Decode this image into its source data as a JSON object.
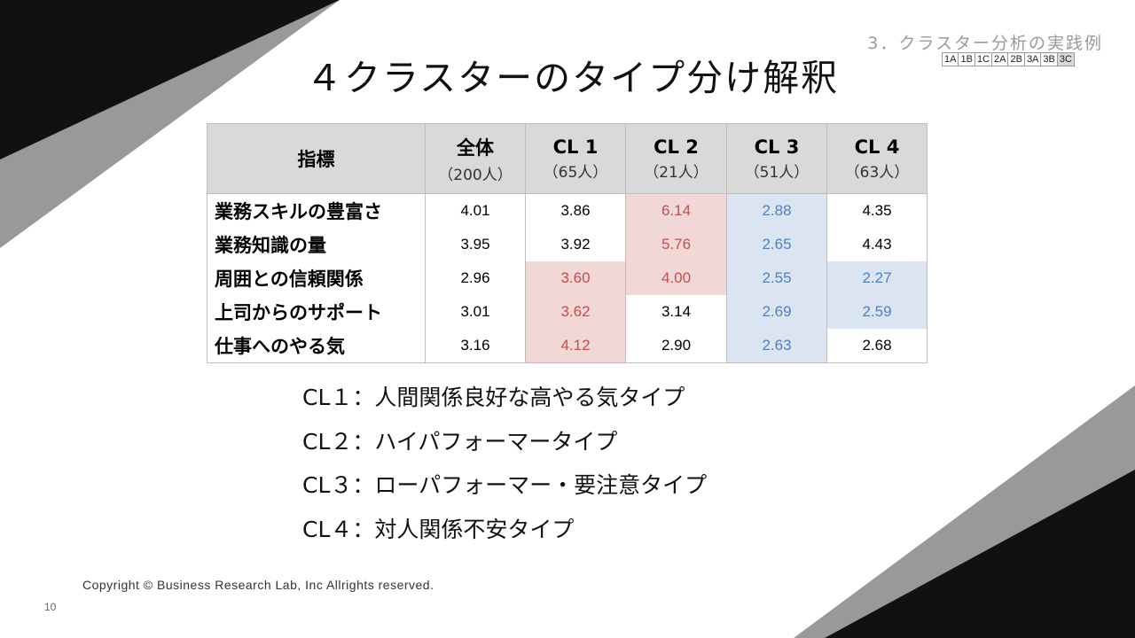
{
  "section_title": "3．クラスター分析の実践例",
  "nav_tabs": [
    "1A",
    "1B",
    "1C",
    "2A",
    "2B",
    "3A",
    "3B",
    "3C"
  ],
  "active_tab": "3C",
  "title": "４クラスターのタイプ分け解釈",
  "table": {
    "corner_header": "指標",
    "columns": [
      {
        "label": "全体",
        "sub": "（200人）"
      },
      {
        "label": "CL 1",
        "sub": "（65人）"
      },
      {
        "label": "CL 2",
        "sub": "（21人）"
      },
      {
        "label": "CL 3",
        "sub": "（51人）"
      },
      {
        "label": "CL 4",
        "sub": "（63人）"
      }
    ],
    "rows": [
      {
        "label": "業務スキルの豊富さ",
        "values": [
          "4.01",
          "3.86",
          "6.14",
          "2.88",
          "4.35"
        ],
        "highlight": [
          "",
          "",
          "high",
          "low",
          ""
        ]
      },
      {
        "label": "業務知識の量",
        "values": [
          "3.95",
          "3.92",
          "5.76",
          "2.65",
          "4.43"
        ],
        "highlight": [
          "",
          "",
          "high",
          "low",
          ""
        ]
      },
      {
        "label": "周囲との信頼関係",
        "values": [
          "2.96",
          "3.60",
          "4.00",
          "2.55",
          "2.27"
        ],
        "highlight": [
          "",
          "high",
          "high",
          "low",
          "low"
        ]
      },
      {
        "label": "上司からのサポート",
        "values": [
          "3.01",
          "3.62",
          "3.14",
          "2.69",
          "2.59"
        ],
        "highlight": [
          "",
          "high",
          "",
          "low",
          "low"
        ]
      },
      {
        "label": "仕事へのやる気",
        "values": [
          "3.16",
          "4.12",
          "2.90",
          "2.63",
          "2.68"
        ],
        "highlight": [
          "",
          "high",
          "",
          "low",
          ""
        ]
      }
    ],
    "colors": {
      "high_bg": "#f2d7d7",
      "high_text": "#c0504d",
      "low_bg": "#dae5f1",
      "low_text": "#4f81bd"
    }
  },
  "legend": [
    "CL１：人間関係良好な高やる気タイプ",
    "CL２：ハイパフォーマータイプ",
    "CL３：ローパフォーマー・要注意タイプ",
    "CL４：対人関係不安タイプ"
  ],
  "copyright": "Copyright © Business Research Lab, Inc Allrights reserved.",
  "page_number": "10"
}
